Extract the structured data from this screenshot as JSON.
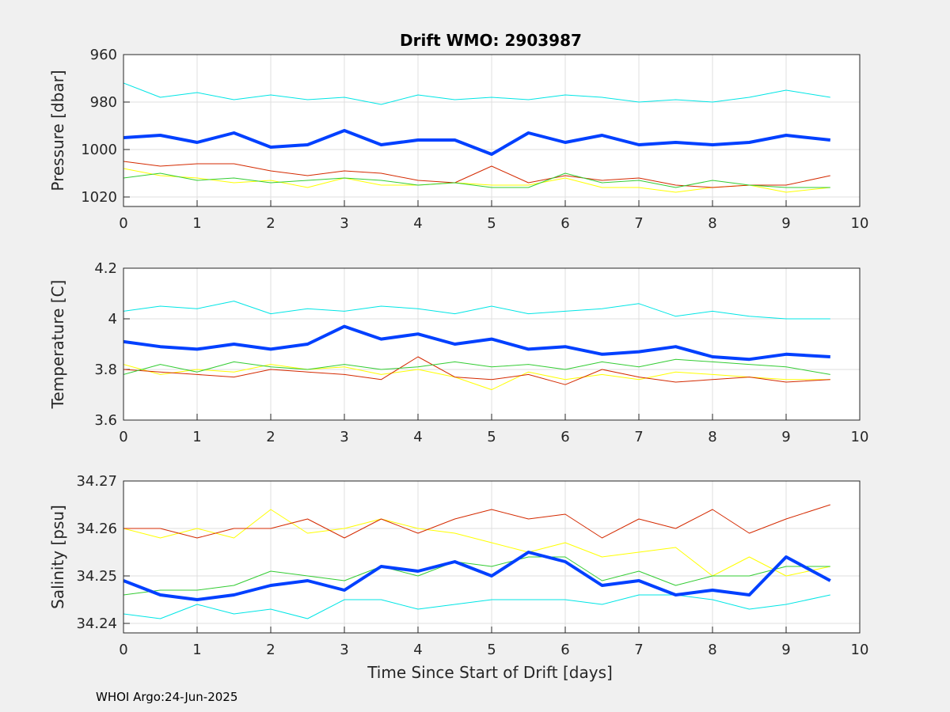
{
  "figure": {
    "title": "Drift WMO: 2903987",
    "footer": "WHOI Argo:24-Jun-2025"
  },
  "series_colors": [
    "#00e5e5",
    "#0040ff",
    "#ffff00",
    "#d42a00",
    "#33cc33"
  ],
  "chart_data": [
    {
      "type": "line",
      "ylabel": "Pressure [dbar]",
      "xlabel": "",
      "xlim": [
        0,
        10
      ],
      "ylim": [
        1024,
        960
      ],
      "y_reversed": true,
      "xticks": [
        "0",
        "1",
        "2",
        "3",
        "4",
        "5",
        "6",
        "7",
        "8",
        "9",
        "10"
      ],
      "yticks": [
        "960",
        "980",
        "1000",
        "1020"
      ],
      "grid": true,
      "series": [
        {
          "color": "#00e5e5",
          "width": 1,
          "x": [
            0,
            0.5,
            1,
            1.5,
            2,
            2.5,
            3,
            3.5,
            4,
            4.5,
            5,
            5.5,
            6,
            6.5,
            7,
            7.5,
            8,
            8.5,
            9,
            9.6
          ],
          "y": [
            972,
            978,
            976,
            979,
            977,
            979,
            978,
            981,
            977,
            979,
            978,
            979,
            977,
            978,
            980,
            979,
            980,
            978,
            975,
            978
          ]
        },
        {
          "color": "#0040ff",
          "width": 4,
          "x": [
            0,
            0.5,
            1,
            1.5,
            2,
            2.5,
            3,
            3.5,
            4,
            4.5,
            5,
            5.5,
            6,
            6.5,
            7,
            7.5,
            8,
            8.5,
            9,
            9.6
          ],
          "y": [
            995,
            994,
            997,
            993,
            999,
            998,
            992,
            998,
            996,
            996,
            1002,
            993,
            997,
            994,
            998,
            997,
            998,
            997,
            994,
            996
          ]
        },
        {
          "color": "#ffff00",
          "width": 1,
          "x": [
            0,
            0.5,
            1,
            1.5,
            2,
            2.5,
            3,
            3.5,
            4,
            4.5,
            5,
            5.5,
            6,
            6.5,
            7,
            7.5,
            8,
            8.5,
            9,
            9.6
          ],
          "y": [
            1008,
            1011,
            1012,
            1014,
            1013,
            1016,
            1012,
            1015,
            1015,
            1014,
            1015,
            1015,
            1012,
            1016,
            1016,
            1018,
            1016,
            1015,
            1018,
            1016
          ]
        },
        {
          "color": "#d42a00",
          "width": 1,
          "x": [
            0,
            0.5,
            1,
            1.5,
            2,
            2.5,
            3,
            3.5,
            4,
            4.5,
            5,
            5.5,
            6,
            6.5,
            7,
            7.5,
            8,
            8.5,
            9,
            9.6
          ],
          "y": [
            1005,
            1007,
            1006,
            1006,
            1009,
            1011,
            1009,
            1010,
            1013,
            1014,
            1007,
            1014,
            1011,
            1013,
            1012,
            1015,
            1016,
            1015,
            1015,
            1011
          ]
        },
        {
          "color": "#33cc33",
          "width": 1,
          "x": [
            0,
            0.5,
            1,
            1.5,
            2,
            2.5,
            3,
            3.5,
            4,
            4.5,
            5,
            5.5,
            6,
            6.5,
            7,
            7.5,
            8,
            8.5,
            9,
            9.6
          ],
          "y": [
            1012,
            1010,
            1013,
            1012,
            1014,
            1013,
            1012,
            1013,
            1015,
            1014,
            1016,
            1016,
            1010,
            1014,
            1013,
            1016,
            1013,
            1015,
            1016,
            1016
          ]
        }
      ]
    },
    {
      "type": "line",
      "ylabel": "Temperature [C]",
      "xlabel": "",
      "xlim": [
        0,
        10
      ],
      "ylim": [
        3.6,
        4.2
      ],
      "xticks": [
        "0",
        "1",
        "2",
        "3",
        "4",
        "5",
        "6",
        "7",
        "8",
        "9",
        "10"
      ],
      "yticks": [
        "3.6",
        "3.8",
        "4",
        "4.2"
      ],
      "grid": true,
      "series": [
        {
          "color": "#00e5e5",
          "width": 1,
          "x": [
            0,
            0.5,
            1,
            1.5,
            2,
            2.5,
            3,
            3.5,
            4,
            4.5,
            5,
            5.5,
            6,
            6.5,
            7,
            7.5,
            8,
            8.5,
            9,
            9.6
          ],
          "y": [
            4.03,
            4.05,
            4.04,
            4.07,
            4.02,
            4.04,
            4.03,
            4.05,
            4.04,
            4.02,
            4.05,
            4.02,
            4.03,
            4.04,
            4.06,
            4.01,
            4.03,
            4.01,
            4.0,
            4.0
          ]
        },
        {
          "color": "#0040ff",
          "width": 4,
          "x": [
            0,
            0.5,
            1,
            1.5,
            2,
            2.5,
            3,
            3.5,
            4,
            4.5,
            5,
            5.5,
            6,
            6.5,
            7,
            7.5,
            8,
            8.5,
            9,
            9.6
          ],
          "y": [
            3.91,
            3.89,
            3.88,
            3.9,
            3.88,
            3.9,
            3.97,
            3.92,
            3.94,
            3.9,
            3.92,
            3.88,
            3.89,
            3.86,
            3.87,
            3.89,
            3.85,
            3.84,
            3.86,
            3.85
          ]
        },
        {
          "color": "#ffff00",
          "width": 1,
          "x": [
            0,
            0.5,
            1,
            1.5,
            2,
            2.5,
            3,
            3.5,
            4,
            4.5,
            5,
            5.5,
            6,
            6.5,
            7,
            7.5,
            8,
            8.5,
            9,
            9.6
          ],
          "y": [
            3.82,
            3.78,
            3.8,
            3.79,
            3.82,
            3.8,
            3.81,
            3.78,
            3.8,
            3.77,
            3.72,
            3.79,
            3.76,
            3.78,
            3.76,
            3.79,
            3.78,
            3.77,
            3.76,
            3.76
          ]
        },
        {
          "color": "#d42a00",
          "width": 1,
          "x": [
            0,
            0.5,
            1,
            1.5,
            2,
            2.5,
            3,
            3.5,
            4,
            4.5,
            5,
            5.5,
            6,
            6.5,
            7,
            7.5,
            8,
            8.5,
            9,
            9.6
          ],
          "y": [
            3.8,
            3.79,
            3.78,
            3.77,
            3.8,
            3.79,
            3.78,
            3.76,
            3.85,
            3.77,
            3.76,
            3.78,
            3.74,
            3.8,
            3.77,
            3.75,
            3.76,
            3.77,
            3.75,
            3.76
          ]
        },
        {
          "color": "#33cc33",
          "width": 1,
          "x": [
            0,
            0.5,
            1,
            1.5,
            2,
            2.5,
            3,
            3.5,
            4,
            4.5,
            5,
            5.5,
            6,
            6.5,
            7,
            7.5,
            8,
            8.5,
            9,
            9.6
          ],
          "y": [
            3.78,
            3.82,
            3.79,
            3.83,
            3.81,
            3.8,
            3.82,
            3.8,
            3.81,
            3.83,
            3.81,
            3.82,
            3.8,
            3.83,
            3.81,
            3.84,
            3.83,
            3.82,
            3.81,
            3.78
          ]
        }
      ]
    },
    {
      "type": "line",
      "ylabel": "Salinity [psu]",
      "xlabel": "Time Since Start of Drift [days]",
      "xlim": [
        0,
        10
      ],
      "ylim": [
        34.238,
        34.27
      ],
      "xticks": [
        "0",
        "1",
        "2",
        "3",
        "4",
        "5",
        "6",
        "7",
        "8",
        "9",
        "10"
      ],
      "yticks": [
        "34.24",
        "34.25",
        "34.26",
        "34.27"
      ],
      "grid": true,
      "series": [
        {
          "color": "#00e5e5",
          "width": 1,
          "x": [
            0,
            0.5,
            1,
            1.5,
            2,
            2.5,
            3,
            3.5,
            4,
            4.5,
            5,
            5.5,
            6,
            6.5,
            7,
            7.5,
            8,
            8.5,
            9,
            9.6
          ],
          "y": [
            34.242,
            34.241,
            34.244,
            34.242,
            34.243,
            34.241,
            34.245,
            34.245,
            34.243,
            34.244,
            34.245,
            34.245,
            34.245,
            34.244,
            34.246,
            34.246,
            34.245,
            34.243,
            34.244,
            34.246
          ]
        },
        {
          "color": "#0040ff",
          "width": 4,
          "x": [
            0,
            0.5,
            1,
            1.5,
            2,
            2.5,
            3,
            3.5,
            4,
            4.5,
            5,
            5.5,
            6,
            6.5,
            7,
            7.5,
            8,
            8.5,
            9,
            9.6
          ],
          "y": [
            34.249,
            34.246,
            34.245,
            34.246,
            34.248,
            34.249,
            34.247,
            34.252,
            34.251,
            34.253,
            34.25,
            34.255,
            34.253,
            34.248,
            34.249,
            34.246,
            34.247,
            34.246,
            34.254,
            34.249
          ]
        },
        {
          "color": "#ffff00",
          "width": 1,
          "x": [
            0,
            0.5,
            1,
            1.5,
            2,
            2.5,
            3,
            3.5,
            4,
            4.5,
            5,
            5.5,
            6,
            6.5,
            7,
            7.5,
            8,
            8.5,
            9,
            9.6
          ],
          "y": [
            34.26,
            34.258,
            34.26,
            34.258,
            34.264,
            34.259,
            34.26,
            34.262,
            34.26,
            34.259,
            34.257,
            34.255,
            34.257,
            34.254,
            34.255,
            34.256,
            34.25,
            34.254,
            34.25,
            34.252
          ]
        },
        {
          "color": "#d42a00",
          "width": 1,
          "x": [
            0,
            0.5,
            1,
            1.5,
            2,
            2.5,
            3,
            3.5,
            4,
            4.5,
            5,
            5.5,
            6,
            6.5,
            7,
            7.5,
            8,
            8.5,
            9,
            9.6
          ],
          "y": [
            34.26,
            34.26,
            34.258,
            34.26,
            34.26,
            34.262,
            34.258,
            34.262,
            34.259,
            34.262,
            34.264,
            34.262,
            34.263,
            34.258,
            34.262,
            34.26,
            34.264,
            34.259,
            34.262,
            34.265
          ]
        },
        {
          "color": "#33cc33",
          "width": 1,
          "x": [
            0,
            0.5,
            1,
            1.5,
            2,
            2.5,
            3,
            3.5,
            4,
            4.5,
            5,
            5.5,
            6,
            6.5,
            7,
            7.5,
            8,
            8.5,
            9,
            9.6
          ],
          "y": [
            34.246,
            34.247,
            34.247,
            34.248,
            34.251,
            34.25,
            34.249,
            34.252,
            34.25,
            34.253,
            34.252,
            34.254,
            34.254,
            34.249,
            34.251,
            34.248,
            34.25,
            34.25,
            34.252,
            34.252
          ]
        }
      ]
    }
  ]
}
